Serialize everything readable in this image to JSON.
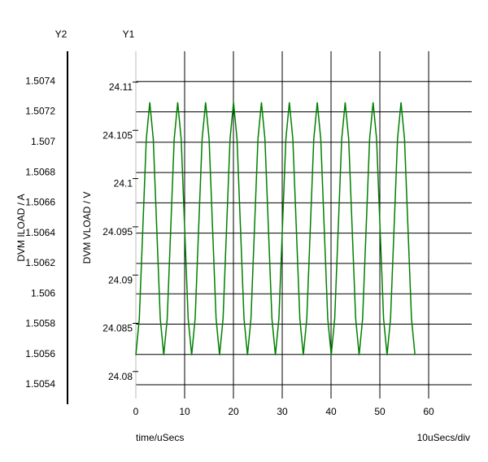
{
  "chart_data": {
    "type": "line",
    "y2_title": "Y2",
    "y1_title": "Y1",
    "y2_label": "DVM ILOAD / A",
    "y1_label": "DVM VLOAD / V",
    "x_label": "time/uSecs",
    "x_scale_note": "10uSecs/div",
    "xlim": [
      0,
      68.83
    ],
    "xticks": [
      0,
      10,
      20,
      30,
      40,
      50,
      60
    ],
    "ylim": [
      24.0772,
      24.1132
    ],
    "yticks": [
      24.08,
      24.085,
      24.09,
      24.095,
      24.1,
      24.105,
      24.11
    ],
    "y2lim": [
      1.505309,
      1.5076
    ],
    "y2ticks": [
      1.5054,
      1.5056,
      1.5058,
      1.506,
      1.5062,
      1.5064,
      1.5066,
      1.5068,
      1.507,
      1.5072,
      1.5074
    ],
    "grid": true,
    "x": [
      0,
      0.715,
      1.43,
      2.145,
      2.86,
      3.575,
      4.29,
      5.005,
      5.72,
      6.435,
      7.15,
      7.865,
      8.58,
      9.295,
      10.01,
      10.725,
      11.44,
      12.155,
      12.87,
      13.585,
      14.3,
      15.015,
      15.73,
      16.445,
      17.16,
      17.875,
      18.59,
      19.305,
      20.02,
      20.735,
      21.45,
      22.165,
      22.88,
      23.595,
      24.31,
      25.025,
      25.74,
      26.455,
      27.17,
      27.885,
      28.6,
      29.315,
      30.03,
      30.745,
      31.46,
      32.175,
      32.89,
      33.605,
      34.32,
      35.035,
      35.75,
      36.465,
      37.18,
      37.895,
      38.61,
      39.325,
      40.04,
      40.755,
      41.47,
      42.185,
      42.9,
      43.615,
      44.33,
      45.045,
      45.76,
      46.475,
      47.19,
      47.905,
      48.62,
      49.335,
      50.05,
      50.765,
      51.48,
      52.195,
      52.91,
      53.625,
      54.34,
      55.055,
      55.77,
      56.485,
      57.2
    ],
    "series": [
      {
        "color": "#008000",
        "axis": "y1",
        "values": [
          24.0817,
          24.0855,
          24.0948,
          24.1041,
          24.1079,
          24.1041,
          24.0948,
          24.0855,
          24.0817,
          24.0855,
          24.0948,
          24.1041,
          24.1079,
          24.1041,
          24.0948,
          24.0855,
          24.0817,
          24.0855,
          24.0948,
          24.1041,
          24.1079,
          24.1041,
          24.0948,
          24.0855,
          24.0817,
          24.0855,
          24.0948,
          24.1041,
          24.1079,
          24.1041,
          24.0948,
          24.0855,
          24.0817,
          24.0855,
          24.0948,
          24.1041,
          24.1079,
          24.1041,
          24.0948,
          24.0855,
          24.0817,
          24.0855,
          24.0948,
          24.1041,
          24.1079,
          24.1041,
          24.0948,
          24.0855,
          24.0817,
          24.0855,
          24.0948,
          24.1041,
          24.1079,
          24.1041,
          24.0948,
          24.0855,
          24.0817,
          24.0855,
          24.0948,
          24.1041,
          24.1079,
          24.1041,
          24.0948,
          24.0855,
          24.0817,
          24.0855,
          24.0948,
          24.1041,
          24.1079,
          24.1041,
          24.0948,
          24.0855,
          24.0817,
          24.0855,
          24.0948,
          24.1041,
          24.1079,
          24.1041,
          24.0948,
          24.0855,
          24.0817
        ]
      }
    ]
  }
}
